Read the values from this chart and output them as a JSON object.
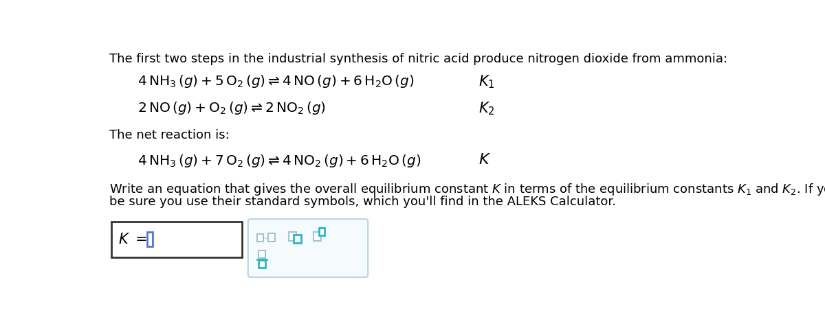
{
  "bg_color": "#ffffff",
  "text_color": "#000000",
  "header_text": "The first two steps in the industrial synthesis of nitric acid produce nitrogen dioxide from ammonia:",
  "net_label": "The net reaction is:",
  "figsize": [
    12.0,
    4.59
  ],
  "dpi": 100,
  "icon_color_outline": "#a0c4d0",
  "icon_color_teal": "#2bb5c8",
  "cursor_color": "#5577cc",
  "panel_border": "#b8d4e0",
  "box_border": "#333333"
}
